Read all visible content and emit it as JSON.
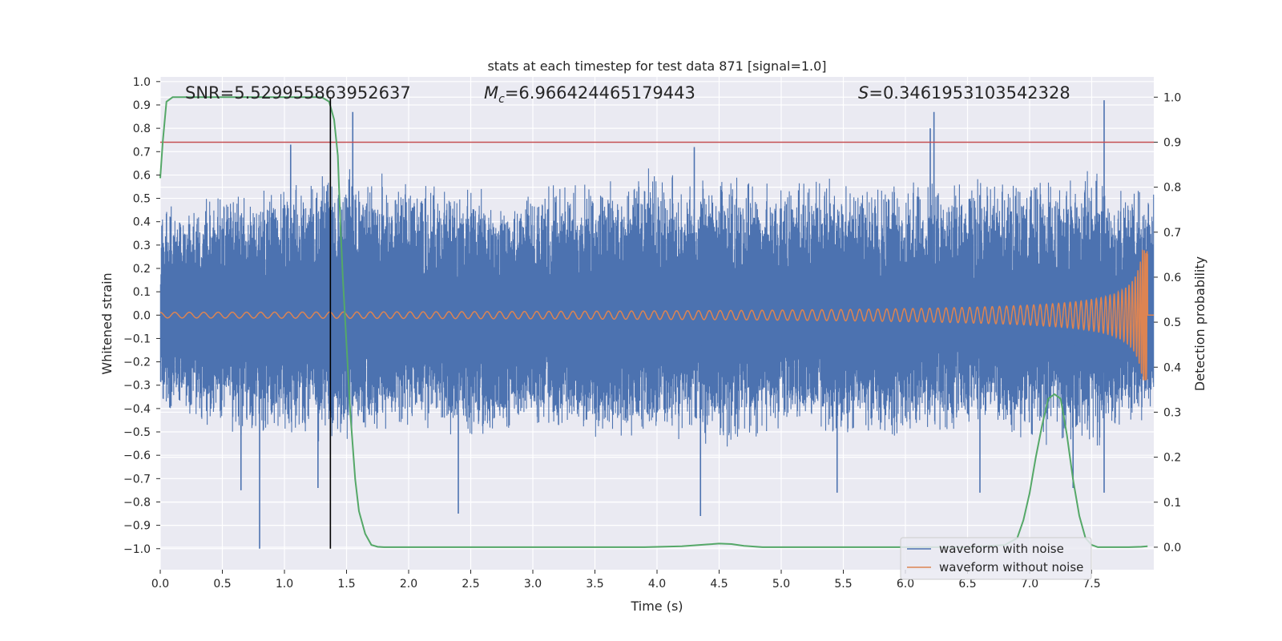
{
  "chart_data": {
    "type": "line",
    "title": "stats at each timestep for test data 871 [signal=1.0]",
    "xlabel": "Time (s)",
    "ylabel": "Whitened strain",
    "y2label": "Detection probability",
    "xlim": [
      0.0,
      8.0
    ],
    "ylim": [
      -1.09,
      1.02
    ],
    "y2lim": [
      -0.05,
      1.045
    ],
    "xticks": [
      "0.0",
      "0.5",
      "1.0",
      "1.5",
      "2.0",
      "2.5",
      "3.0",
      "3.5",
      "4.0",
      "4.5",
      "5.0",
      "5.5",
      "6.0",
      "6.5",
      "7.0",
      "7.5"
    ],
    "xtick_values": [
      0.0,
      0.5,
      1.0,
      1.5,
      2.0,
      2.5,
      3.0,
      3.5,
      4.0,
      4.5,
      5.0,
      5.5,
      6.0,
      6.5,
      7.0,
      7.5
    ],
    "yticks": [
      "1.0",
      "0.9",
      "0.8",
      "0.7",
      "0.6",
      "0.5",
      "0.4",
      "0.3",
      "0.2",
      "0.1",
      "0.0",
      "−0.1",
      "−0.2",
      "−0.3",
      "−0.4",
      "−0.5",
      "−0.6",
      "−0.7",
      "−0.8",
      "−0.9",
      "−1.0"
    ],
    "ytick_values": [
      1.0,
      0.9,
      0.8,
      0.7,
      0.6,
      0.5,
      0.4,
      0.3,
      0.2,
      0.1,
      0.0,
      -0.1,
      -0.2,
      -0.3,
      -0.4,
      -0.5,
      -0.6,
      -0.7,
      -0.8,
      -0.9,
      -1.0
    ],
    "y2ticks": [
      "1.0",
      "0.9",
      "0.8",
      "0.7",
      "0.6",
      "0.5",
      "0.4",
      "0.3",
      "0.2",
      "0.1",
      "0.0"
    ],
    "y2tick_values": [
      1.0,
      0.9,
      0.8,
      0.7,
      0.6,
      0.5,
      0.4,
      0.3,
      0.2,
      0.1,
      0.0
    ],
    "annotations": {
      "snr": "SNR=5.529955863952637",
      "mc_symbol": "M",
      "mc_sub": "c",
      "mc_value": "=6.966424465179443",
      "s_symbol": "S",
      "s_value": "=0.3461953103542328"
    },
    "threshold": {
      "value": 0.9,
      "axis": "right",
      "color": "#c44e52"
    },
    "marker_time": 1.37,
    "series": [
      {
        "name": "waveform with noise",
        "color": "#4c72b0",
        "axis": "left",
        "envelope": {
          "t": [
            0,
            0.5,
            1,
            1.5,
            2,
            2.5,
            3,
            3.5,
            4,
            4.5,
            5,
            5.5,
            6,
            6.5,
            7,
            7.5,
            8
          ],
          "upper": [
            0.5,
            0.55,
            0.6,
            0.65,
            0.6,
            0.6,
            0.55,
            0.6,
            0.65,
            0.6,
            0.6,
            0.6,
            0.62,
            0.6,
            0.62,
            0.65,
            0.55
          ],
          "lower": [
            -0.42,
            -0.5,
            -0.55,
            -0.55,
            -0.5,
            -0.55,
            -0.5,
            -0.55,
            -0.55,
            -0.6,
            -0.5,
            -0.55,
            -0.55,
            -0.5,
            -0.55,
            -0.6,
            -0.45
          ]
        },
        "spikes": [
          {
            "t": 1.55,
            "v": 0.87
          },
          {
            "t": 6.23,
            "v": 0.87
          },
          {
            "t": 7.6,
            "v": 0.92
          },
          {
            "t": 1.05,
            "v": 0.73
          },
          {
            "t": 4.3,
            "v": 0.72
          },
          {
            "t": 6.2,
            "v": 0.8
          },
          {
            "t": 0.8,
            "v": -1.0
          },
          {
            "t": 2.4,
            "v": -0.85
          },
          {
            "t": 4.35,
            "v": -0.86
          },
          {
            "t": 0.65,
            "v": -0.75
          },
          {
            "t": 1.27,
            "v": -0.74
          },
          {
            "t": 6.6,
            "v": -0.76
          },
          {
            "t": 7.35,
            "v": -0.74
          },
          {
            "t": 7.6,
            "v": -0.76
          },
          {
            "t": 5.45,
            "v": -0.76
          }
        ]
      },
      {
        "name": "waveform without noise",
        "color": "#dd8452",
        "axis": "left",
        "chirp": {
          "t_start": 0.0,
          "t_merge": 7.95,
          "amp_start": 0.012,
          "amp_peak": 0.28,
          "cycles_start": 18
        }
      },
      {
        "name": "detection probability",
        "color": "#55a868",
        "axis": "right",
        "t": [
          0,
          0.02,
          0.05,
          0.1,
          0.15,
          0.2,
          0.3,
          0.5,
          0.8,
          1.0,
          1.2,
          1.3,
          1.36,
          1.4,
          1.43,
          1.45,
          1.47,
          1.5,
          1.53,
          1.57,
          1.6,
          1.65,
          1.7,
          1.75,
          1.8,
          2.0,
          3.0,
          3.9,
          4.2,
          4.4,
          4.5,
          4.6,
          4.7,
          4.85,
          5.0,
          6.0,
          6.5,
          6.8,
          6.9,
          6.95,
          7.0,
          7.05,
          7.1,
          7.15,
          7.2,
          7.25,
          7.3,
          7.35,
          7.4,
          7.45,
          7.5,
          7.55,
          7.6,
          7.7,
          7.8,
          7.9,
          7.95
        ],
        "values": [
          0.82,
          0.9,
          0.99,
          1.0,
          1.0,
          1.0,
          1.0,
          1.0,
          1.0,
          1.0,
          1.0,
          1.0,
          0.99,
          0.95,
          0.87,
          0.72,
          0.6,
          0.45,
          0.3,
          0.15,
          0.08,
          0.03,
          0.005,
          0.001,
          0.0,
          0.0,
          0.0,
          0.0,
          0.002,
          0.006,
          0.008,
          0.007,
          0.003,
          0.0,
          0.0,
          0.0,
          0.0,
          0.005,
          0.02,
          0.06,
          0.12,
          0.2,
          0.27,
          0.33,
          0.34,
          0.33,
          0.25,
          0.15,
          0.07,
          0.02,
          0.005,
          0.0,
          0.0,
          0.0,
          0.0,
          0.001,
          0.002
        ]
      }
    ],
    "legend": {
      "position": "lower-right",
      "entries": [
        {
          "label": "waveform with noise",
          "color": "#4c72b0"
        },
        {
          "label": "waveform without noise",
          "color": "#dd8452"
        }
      ]
    }
  }
}
